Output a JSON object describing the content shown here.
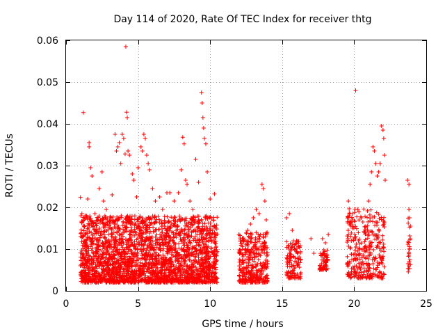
{
  "chart_data": {
    "type": "scatter",
    "title": "Day 114 of 2020, Rate Of TEC Index for receiver thtg",
    "xlabel": "GPS time / hours",
    "ylabel": "ROTI / TECUs",
    "xlim": [
      0,
      25
    ],
    "ylim": [
      0,
      0.06
    ],
    "xticks": [
      0,
      5,
      10,
      15,
      20,
      25
    ],
    "xtick_labels": [
      "0",
      "5",
      "10",
      "15",
      "20",
      "25"
    ],
    "yticks": [
      0,
      0.01,
      0.02,
      0.03,
      0.04,
      0.05,
      0.06
    ],
    "ytick_labels": [
      "0",
      "0.01",
      "0.02",
      "0.03",
      "0.04",
      "0.05",
      "0.06"
    ],
    "grid": true,
    "marker": "plus",
    "color": "#ff0000",
    "series": [
      {
        "points": [
          [
            1.0,
            0.006
          ],
          [
            1.0,
            0.0224
          ],
          [
            1.1,
            0.0185
          ],
          [
            1.2,
            0.0427
          ],
          [
            1.3,
            0.012
          ],
          [
            1.4,
            0.0095
          ],
          [
            1.5,
            0.022
          ],
          [
            1.6,
            0.0355
          ],
          [
            1.6,
            0.0345
          ],
          [
            1.7,
            0.0295
          ],
          [
            1.8,
            0.0275
          ],
          [
            2.0,
            0.0185
          ],
          [
            2.2,
            0.017
          ],
          [
            2.3,
            0.0245
          ],
          [
            2.5,
            0.0285
          ],
          [
            2.6,
            0.0215
          ],
          [
            2.8,
            0.0195
          ],
          [
            3.0,
            0.011
          ],
          [
            3.2,
            0.023
          ],
          [
            3.4,
            0.0375
          ],
          [
            3.5,
            0.0335
          ],
          [
            3.6,
            0.0345
          ],
          [
            3.7,
            0.0355
          ],
          [
            3.8,
            0.0305
          ],
          [
            3.9,
            0.0375
          ],
          [
            4.0,
            0.0365
          ],
          [
            4.1,
            0.0328
          ],
          [
            4.15,
            0.0585
          ],
          [
            4.2,
            0.0428
          ],
          [
            4.25,
            0.0415
          ],
          [
            4.3,
            0.0335
          ],
          [
            4.4,
            0.0325
          ],
          [
            4.6,
            0.028
          ],
          [
            4.7,
            0.0265
          ],
          [
            4.9,
            0.0225
          ],
          [
            5.0,
            0.0295
          ],
          [
            5.2,
            0.0345
          ],
          [
            5.3,
            0.0335
          ],
          [
            5.4,
            0.0375
          ],
          [
            5.5,
            0.0365
          ],
          [
            5.6,
            0.0325
          ],
          [
            5.7,
            0.0305
          ],
          [
            5.8,
            0.029
          ],
          [
            6.0,
            0.0245
          ],
          [
            6.2,
            0.0215
          ],
          [
            6.5,
            0.0225
          ],
          [
            6.7,
            0.0195
          ],
          [
            7.0,
            0.0235
          ],
          [
            7.2,
            0.0235
          ],
          [
            7.5,
            0.0215
          ],
          [
            7.8,
            0.0235
          ],
          [
            8.0,
            0.029
          ],
          [
            8.1,
            0.0368
          ],
          [
            8.2,
            0.0352
          ],
          [
            8.3,
            0.0265
          ],
          [
            8.4,
            0.0255
          ],
          [
            8.6,
            0.0215
          ],
          [
            8.8,
            0.0195
          ],
          [
            9.0,
            0.0315
          ],
          [
            9.2,
            0.026
          ],
          [
            9.4,
            0.0475
          ],
          [
            9.45,
            0.045
          ],
          [
            9.5,
            0.0415
          ],
          [
            9.55,
            0.039
          ],
          [
            9.6,
            0.0365
          ],
          [
            9.7,
            0.0352
          ],
          [
            9.8,
            0.0285
          ],
          [
            10.0,
            0.022
          ],
          [
            10.3,
            0.0232
          ],
          [
            12.0,
            0.0135
          ],
          [
            12.3,
            0.012
          ],
          [
            12.6,
            0.0145
          ],
          [
            12.8,
            0.016
          ],
          [
            13.0,
            0.0175
          ],
          [
            13.2,
            0.0195
          ],
          [
            13.4,
            0.0185
          ],
          [
            13.6,
            0.0255
          ],
          [
            13.7,
            0.0245
          ],
          [
            13.8,
            0.0215
          ],
          [
            13.9,
            0.017
          ],
          [
            15.3,
            0.0175
          ],
          [
            15.5,
            0.0185
          ],
          [
            15.7,
            0.0145
          ],
          [
            16.0,
            0.012
          ],
          [
            16.2,
            0.0105
          ],
          [
            17.0,
            0.0125
          ],
          [
            17.2,
            0.009
          ],
          [
            17.8,
            0.0125
          ],
          [
            18.0,
            0.0115
          ],
          [
            18.2,
            0.0135
          ],
          [
            19.6,
            0.0215
          ],
          [
            19.7,
            0.0185
          ],
          [
            19.8,
            0.0165
          ],
          [
            20.1,
            0.048
          ],
          [
            20.3,
            0.012
          ],
          [
            20.5,
            0.0175
          ],
          [
            21.0,
            0.0215
          ],
          [
            21.1,
            0.0255
          ],
          [
            21.2,
            0.0285
          ],
          [
            21.3,
            0.0345
          ],
          [
            21.4,
            0.0335
          ],
          [
            21.5,
            0.0305
          ],
          [
            21.6,
            0.0275
          ],
          [
            21.7,
            0.0285
          ],
          [
            21.8,
            0.0305
          ],
          [
            21.9,
            0.0395
          ],
          [
            22.0,
            0.0385
          ],
          [
            22.05,
            0.0365
          ],
          [
            22.1,
            0.0325
          ],
          [
            22.15,
            0.0265
          ],
          [
            23.7,
            0.0265
          ],
          [
            23.8,
            0.0255
          ],
          [
            23.8,
            0.0195
          ],
          [
            23.85,
            0.0175
          ],
          [
            23.9,
            0.0155
          ]
        ],
        "dense_clusters": [
          {
            "x_range": [
              1.0,
              10.5
            ],
            "y_range": [
              0.002,
              0.018
            ],
            "count": 2600
          },
          {
            "x_range": [
              12.0,
              14.0
            ],
            "y_range": [
              0.002,
              0.014
            ],
            "count": 350
          },
          {
            "x_range": [
              15.3,
              16.3
            ],
            "y_range": [
              0.003,
              0.012
            ],
            "count": 120
          },
          {
            "x_range": [
              17.6,
              18.2
            ],
            "y_range": [
              0.005,
              0.01
            ],
            "count": 60
          },
          {
            "x_range": [
              19.5,
              22.1
            ],
            "y_range": [
              0.003,
              0.02
            ],
            "count": 330
          },
          {
            "x_range": [
              23.7,
              23.9
            ],
            "y_range": [
              0.004,
              0.018
            ],
            "count": 25
          }
        ]
      }
    ]
  }
}
